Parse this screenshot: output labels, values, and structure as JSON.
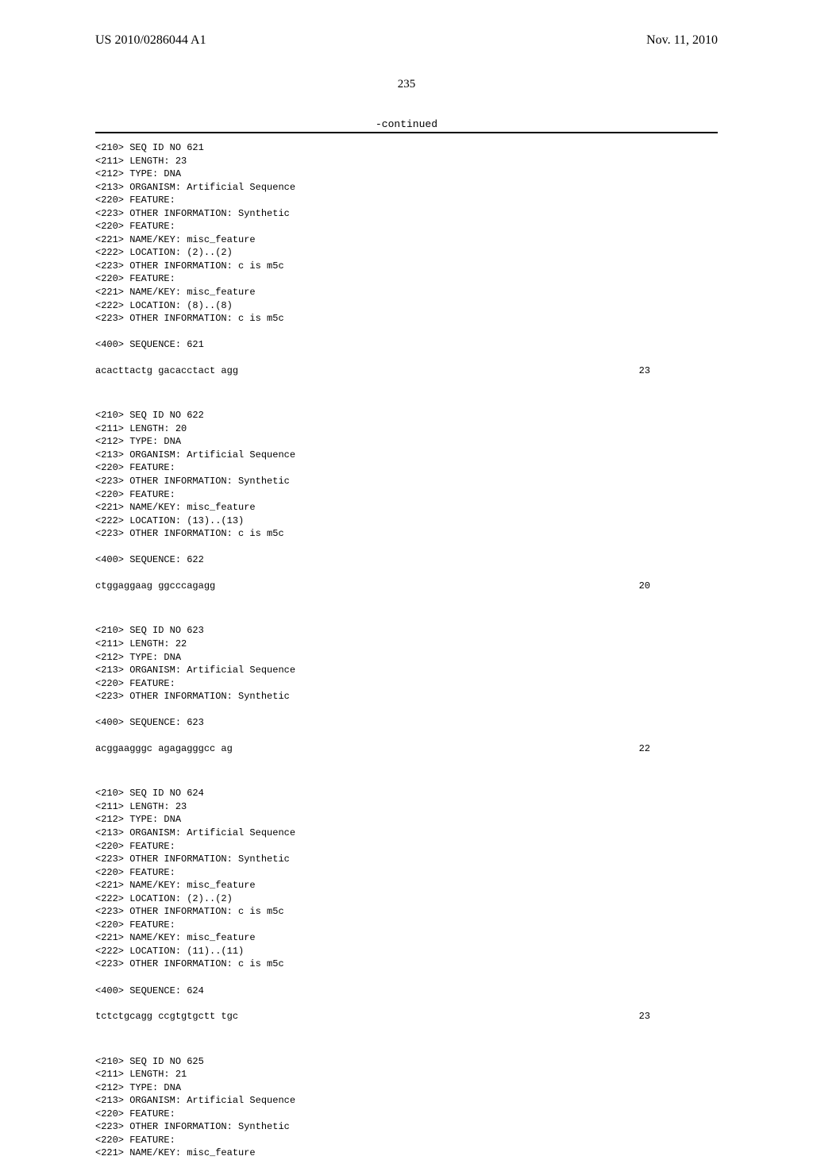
{
  "header": {
    "pub_number": "US 2010/0286044 A1",
    "pub_date": "Nov. 11, 2010"
  },
  "page_number": "235",
  "continued_label": "-continued",
  "entries": [
    {
      "lines": [
        "<210> SEQ ID NO 621",
        "<211> LENGTH: 23",
        "<212> TYPE: DNA",
        "<213> ORGANISM: Artificial Sequence",
        "<220> FEATURE:",
        "<223> OTHER INFORMATION: Synthetic",
        "<220> FEATURE:",
        "<221> NAME/KEY: misc_feature",
        "<222> LOCATION: (2)..(2)",
        "<223> OTHER INFORMATION: c is m5c",
        "<220> FEATURE:",
        "<221> NAME/KEY: misc_feature",
        "<222> LOCATION: (8)..(8)",
        "<223> OTHER INFORMATION: c is m5c",
        "",
        "<400> SEQUENCE: 621"
      ],
      "sequence": "acacttactg gacacctact agg",
      "length": "23"
    },
    {
      "lines": [
        "<210> SEQ ID NO 622",
        "<211> LENGTH: 20",
        "<212> TYPE: DNA",
        "<213> ORGANISM: Artificial Sequence",
        "<220> FEATURE:",
        "<223> OTHER INFORMATION: Synthetic",
        "<220> FEATURE:",
        "<221> NAME/KEY: misc_feature",
        "<222> LOCATION: (13)..(13)",
        "<223> OTHER INFORMATION: c is m5c",
        "",
        "<400> SEQUENCE: 622"
      ],
      "sequence": "ctggaggaag ggcccagagg",
      "length": "20"
    },
    {
      "lines": [
        "<210> SEQ ID NO 623",
        "<211> LENGTH: 22",
        "<212> TYPE: DNA",
        "<213> ORGANISM: Artificial Sequence",
        "<220> FEATURE:",
        "<223> OTHER INFORMATION: Synthetic",
        "",
        "<400> SEQUENCE: 623"
      ],
      "sequence": "acggaagggc agagagggcc ag",
      "length": "22"
    },
    {
      "lines": [
        "<210> SEQ ID NO 624",
        "<211> LENGTH: 23",
        "<212> TYPE: DNA",
        "<213> ORGANISM: Artificial Sequence",
        "<220> FEATURE:",
        "<223> OTHER INFORMATION: Synthetic",
        "<220> FEATURE:",
        "<221> NAME/KEY: misc_feature",
        "<222> LOCATION: (2)..(2)",
        "<223> OTHER INFORMATION: c is m5c",
        "<220> FEATURE:",
        "<221> NAME/KEY: misc_feature",
        "<222> LOCATION: (11)..(11)",
        "<223> OTHER INFORMATION: c is m5c",
        "",
        "<400> SEQUENCE: 624"
      ],
      "sequence": "tctctgcagg ccgtgtgctt tgc",
      "length": "23"
    },
    {
      "lines": [
        "<210> SEQ ID NO 625",
        "<211> LENGTH: 21",
        "<212> TYPE: DNA",
        "<213> ORGANISM: Artificial Sequence",
        "<220> FEATURE:",
        "<223> OTHER INFORMATION: Synthetic",
        "<220> FEATURE:",
        "<221> NAME/KEY: misc_feature"
      ],
      "sequence": null,
      "length": null
    }
  ]
}
